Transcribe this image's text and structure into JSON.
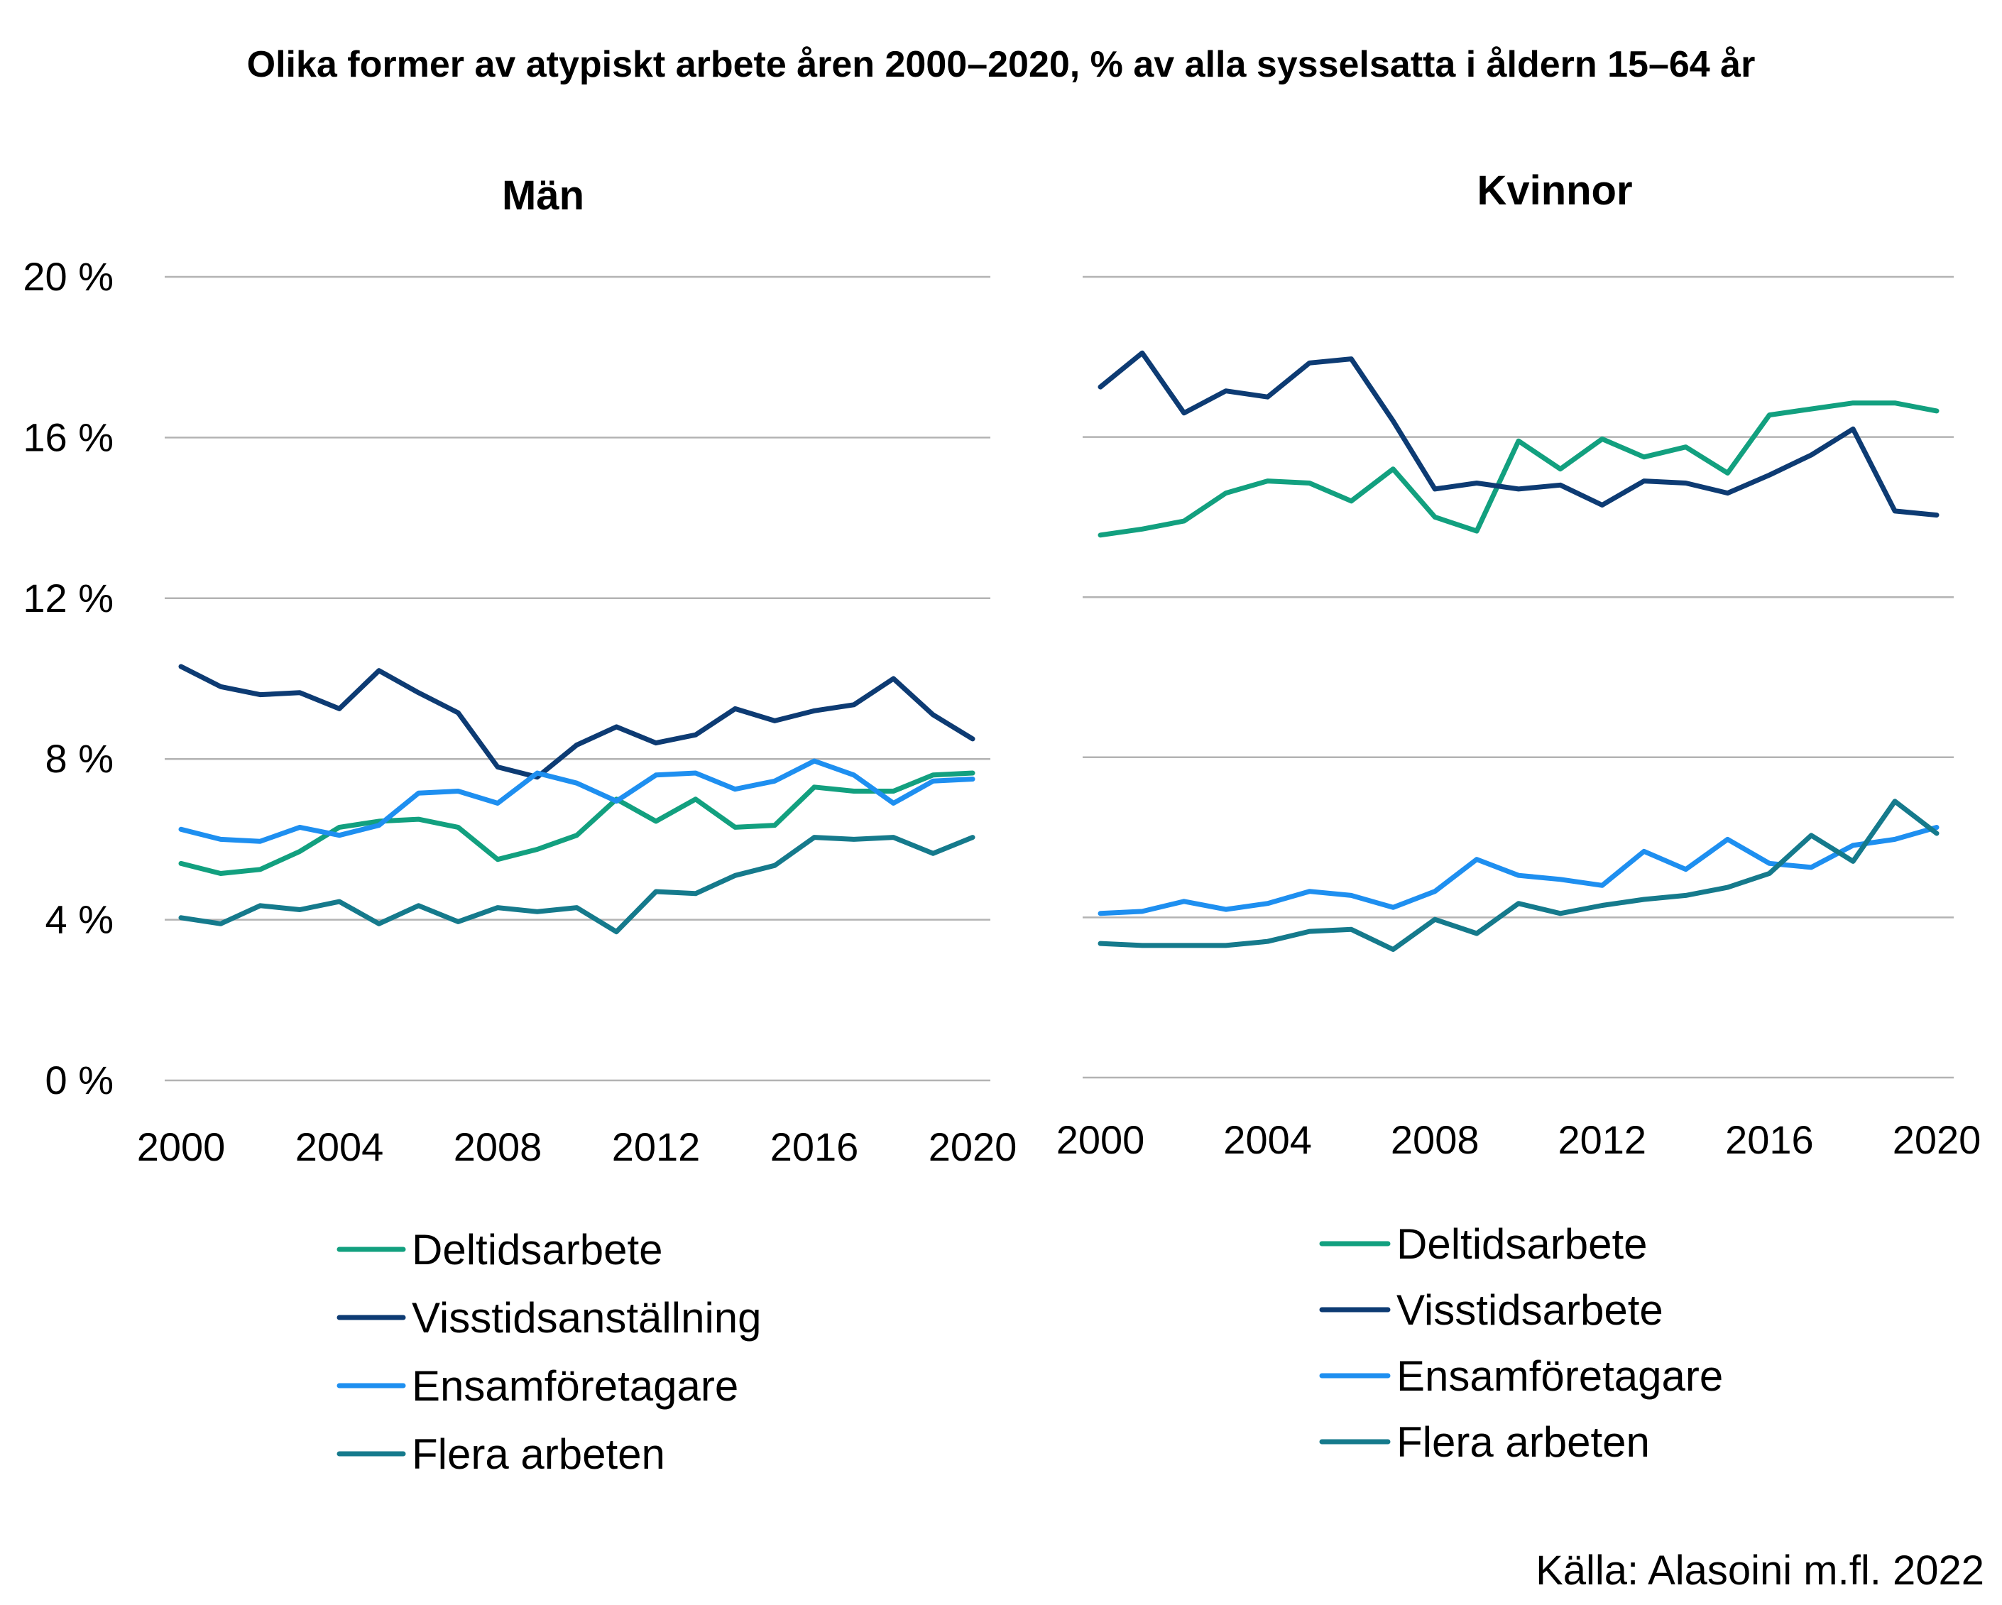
{
  "title": "Olika former av atypiskt arbete åren  2000–2020, % av alla sysselsatta i åldern 15–64 år",
  "source": "Källa: Alasoini m.fl. 2022",
  "colors": {
    "deltid": "#12a07f",
    "visstid": "#0d3b73",
    "ensam": "#1e8ff0",
    "flera": "#157a8c",
    "grid": "#b3b3b3"
  },
  "chart_data": [
    {
      "type": "line",
      "title": "Män",
      "x": [
        2000,
        2001,
        2002,
        2003,
        2004,
        2005,
        2006,
        2007,
        2008,
        2009,
        2010,
        2011,
        2012,
        2013,
        2014,
        2015,
        2016,
        2017,
        2018,
        2019,
        2020
      ],
      "xticks": [
        "2000",
        "2004",
        "2008",
        "2012",
        "2016",
        "2020"
      ],
      "yticks": [
        "0 %",
        "4 %",
        "8 %",
        "12 %",
        "16 %",
        "20 %"
      ],
      "ylim": [
        0,
        20
      ],
      "grid": true,
      "legend_position": "bottom",
      "series": [
        {
          "name": "Deltidsarbete",
          "color": "#12a07f",
          "values": [
            5.4,
            5.15,
            5.25,
            5.7,
            6.3,
            6.45,
            6.5,
            6.3,
            5.5,
            5.75,
            6.1,
            7.0,
            6.45,
            7.0,
            6.3,
            6.35,
            7.3,
            7.2,
            7.2,
            7.6,
            7.65
          ]
        },
        {
          "name": "Visstidsanställning",
          "color": "#0d3b73",
          "values": [
            10.3,
            9.8,
            9.6,
            9.65,
            9.25,
            10.2,
            9.65,
            9.15,
            7.8,
            7.55,
            8.35,
            8.8,
            8.4,
            8.6,
            9.25,
            8.95,
            9.2,
            9.35,
            10.0,
            9.1,
            8.5
          ]
        },
        {
          "name": "Ensamföretagare",
          "color": "#1e8ff0",
          "values": [
            6.25,
            6.0,
            5.95,
            6.3,
            6.1,
            6.35,
            7.15,
            7.2,
            6.9,
            7.65,
            7.4,
            6.95,
            7.6,
            7.65,
            7.25,
            7.45,
            7.95,
            7.6,
            6.9,
            7.45,
            7.5
          ]
        },
        {
          "name": "Flera arbeten",
          "color": "#157a8c",
          "values": [
            4.05,
            3.9,
            4.35,
            4.25,
            4.45,
            3.9,
            4.35,
            3.95,
            4.3,
            4.2,
            4.3,
            3.7,
            4.7,
            4.65,
            5.1,
            5.35,
            6.05,
            6.0,
            6.05,
            5.65,
            6.05
          ]
        }
      ]
    },
    {
      "type": "line",
      "title": "Kvinnor",
      "x": [
        2000,
        2001,
        2002,
        2003,
        2004,
        2005,
        2006,
        2007,
        2008,
        2009,
        2010,
        2011,
        2012,
        2013,
        2014,
        2015,
        2016,
        2017,
        2018,
        2019,
        2020
      ],
      "xticks": [
        "2000",
        "2004",
        "2008",
        "2012",
        "2016",
        "2020"
      ],
      "yticks": [],
      "ylim": [
        0,
        20
      ],
      "grid": true,
      "legend_position": "bottom",
      "series": [
        {
          "name": "Deltidsarbete",
          "color": "#12a07f",
          "values": [
            13.55,
            13.7,
            13.9,
            14.6,
            14.9,
            14.85,
            14.4,
            15.2,
            14.0,
            13.65,
            15.9,
            15.2,
            15.95,
            15.5,
            15.75,
            15.1,
            16.55,
            16.7,
            16.85,
            16.85,
            16.65
          ]
        },
        {
          "name": "Visstidsarbete",
          "color": "#0d3b73",
          "values": [
            17.25,
            18.1,
            16.6,
            17.15,
            17.0,
            17.85,
            17.95,
            16.4,
            14.7,
            14.85,
            14.7,
            14.8,
            14.3,
            14.9,
            14.85,
            14.6,
            15.05,
            15.55,
            16.2,
            14.15,
            14.05
          ]
        },
        {
          "name": "Ensamföretagare",
          "color": "#1e8ff0",
          "values": [
            4.1,
            4.15,
            4.4,
            4.2,
            4.35,
            4.65,
            4.55,
            4.25,
            4.65,
            5.45,
            5.05,
            4.95,
            4.8,
            5.65,
            5.2,
            5.95,
            5.35,
            5.25,
            5.8,
            5.95,
            6.25
          ]
        },
        {
          "name": "Flera arbeten",
          "color": "#157a8c",
          "values": [
            3.35,
            3.3,
            3.3,
            3.3,
            3.4,
            3.65,
            3.7,
            3.2,
            3.95,
            3.6,
            4.35,
            4.1,
            4.3,
            4.45,
            4.55,
            4.75,
            5.1,
            6.05,
            5.4,
            6.9,
            6.1
          ]
        }
      ]
    }
  ]
}
